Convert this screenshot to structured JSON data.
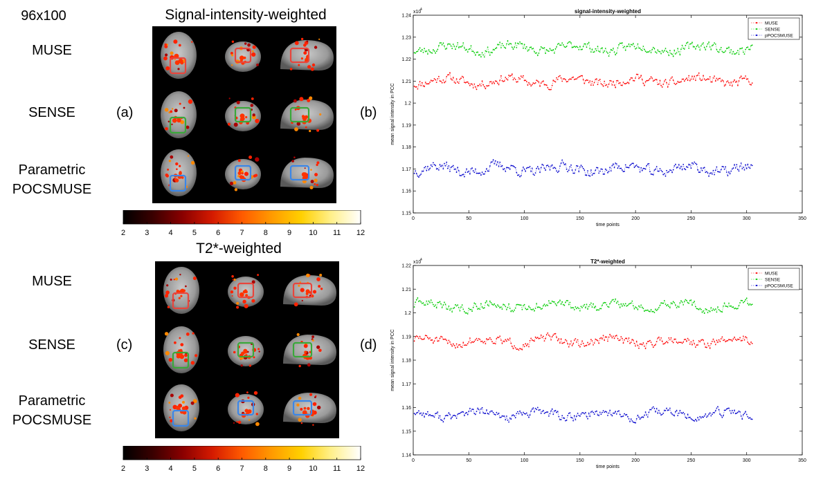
{
  "resolution_label": "96x100",
  "top_section": {
    "title": "Signal-intensity-weighted",
    "rows": [
      "MUSE",
      "SENSE",
      "Parametric\nPOCSMUSE"
    ],
    "panel_image_letter": "(a)",
    "panel_plot_letter": "(b)"
  },
  "bottom_section": {
    "title": "T2*-weighted",
    "rows": [
      "MUSE",
      "SENSE",
      "Parametric\nPOCSMUSE"
    ],
    "panel_image_letter": "(c)",
    "panel_plot_letter": "(d)"
  },
  "colorbar": {
    "ticks": [
      "2",
      "3",
      "4",
      "5",
      "6",
      "7",
      "8",
      "9",
      "10",
      "11",
      "12"
    ],
    "colors": [
      "#000000",
      "#3a0000",
      "#8a0000",
      "#d41a00",
      "#ff5a00",
      "#ff9a00",
      "#ffd000",
      "#fff08a",
      "#ffffff"
    ]
  },
  "box_colors": {
    "muse": "#e8453c",
    "sense": "#3aa83a",
    "pocsmuse": "#3a86e8"
  },
  "chart_data": [
    {
      "type": "line",
      "title": "signal-intensity-weighted",
      "xlabel": "time points",
      "ylabel": "mean signal intensity in PCC",
      "exponent_label": "x10",
      "exponent_power": "4",
      "xlim": [
        0,
        350
      ],
      "ylim": [
        1.15,
        1.24
      ],
      "xticks": [
        "0",
        "50",
        "100",
        "150",
        "200",
        "250",
        "300",
        "350"
      ],
      "yticks": [
        "1.15",
        "1.16",
        "1.17",
        "1.18",
        "1.19",
        "1.2",
        "1.21",
        "1.22",
        "1.23",
        "1.24"
      ],
      "n_points": 305,
      "series": [
        {
          "name": "MUSE",
          "color": "#ff0000",
          "mean": 1.21,
          "amplitude": 0.004,
          "seed": 11
        },
        {
          "name": "SENSE",
          "color": "#00cc00",
          "mean": 1.225,
          "amplitude": 0.004,
          "seed": 23
        },
        {
          "name": "pPOCSMUSE",
          "color": "#0000cc",
          "mean": 1.17,
          "amplitude": 0.0045,
          "seed": 37
        }
      ]
    },
    {
      "type": "line",
      "title": "T2*-weighted",
      "xlabel": "time points",
      "ylabel": "mean signal intensity in PCC",
      "exponent_label": "x10",
      "exponent_power": "4",
      "xlim": [
        0,
        350
      ],
      "ylim": [
        1.14,
        1.22
      ],
      "xticks": [
        "0",
        "50",
        "100",
        "150",
        "200",
        "250",
        "300",
        "350"
      ],
      "yticks": [
        "1.14",
        "1.15",
        "1.16",
        "1.17",
        "1.18",
        "1.19",
        "1.2",
        "1.21",
        "1.22"
      ],
      "n_points": 305,
      "series": [
        {
          "name": "MUSE",
          "color": "#ff0000",
          "mean": 1.188,
          "amplitude": 0.0035,
          "seed": 51
        },
        {
          "name": "SENSE",
          "color": "#00cc00",
          "mean": 1.203,
          "amplitude": 0.0035,
          "seed": 63
        },
        {
          "name": "pPOCSMUSE",
          "color": "#0000cc",
          "mean": 1.157,
          "amplitude": 0.0035,
          "seed": 77
        }
      ]
    }
  ]
}
